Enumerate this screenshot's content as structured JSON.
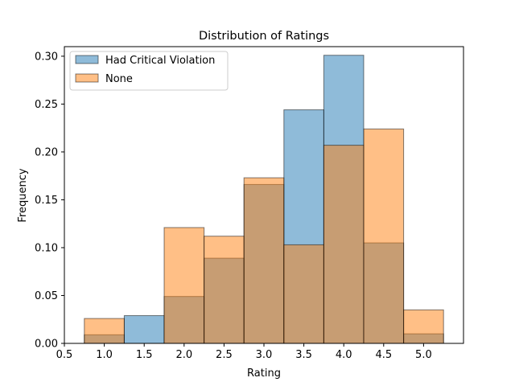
{
  "chart_data": {
    "type": "bar",
    "title": "Distribution of Ratings",
    "xlabel": "Rating",
    "ylabel": "Frequency",
    "xlim": [
      0.5,
      5.5
    ],
    "ylim": [
      0.0,
      0.31
    ],
    "xticks": [
      0.5,
      1.0,
      1.5,
      2.0,
      2.5,
      3.0,
      3.5,
      4.0,
      4.5,
      5.0
    ],
    "xtick_labels": [
      "0.5",
      "1.0",
      "1.5",
      "2.0",
      "2.5",
      "3.0",
      "3.5",
      "4.0",
      "4.5",
      "5.0"
    ],
    "yticks": [
      0.0,
      0.05,
      0.1,
      0.15,
      0.2,
      0.25,
      0.3
    ],
    "ytick_labels": [
      "0.00",
      "0.05",
      "0.10",
      "0.15",
      "0.20",
      "0.25",
      "0.30"
    ],
    "bin_edges": [
      0.75,
      1.25,
      1.75,
      2.25,
      2.75,
      3.25,
      3.75,
      4.25,
      4.75,
      5.25
    ],
    "grid": false,
    "legend_position": "top-left",
    "series": [
      {
        "name": "Had Critical Violation",
        "color": "#1f77b4",
        "values": [
          0.009,
          0.029,
          0.049,
          0.089,
          0.166,
          0.244,
          0.301,
          0.105,
          0.01
        ]
      },
      {
        "name": "None",
        "color": "#ff7f0e",
        "values": [
          0.026,
          0.0,
          0.121,
          0.112,
          0.173,
          0.103,
          0.207,
          0.224,
          0.035
        ]
      }
    ]
  }
}
